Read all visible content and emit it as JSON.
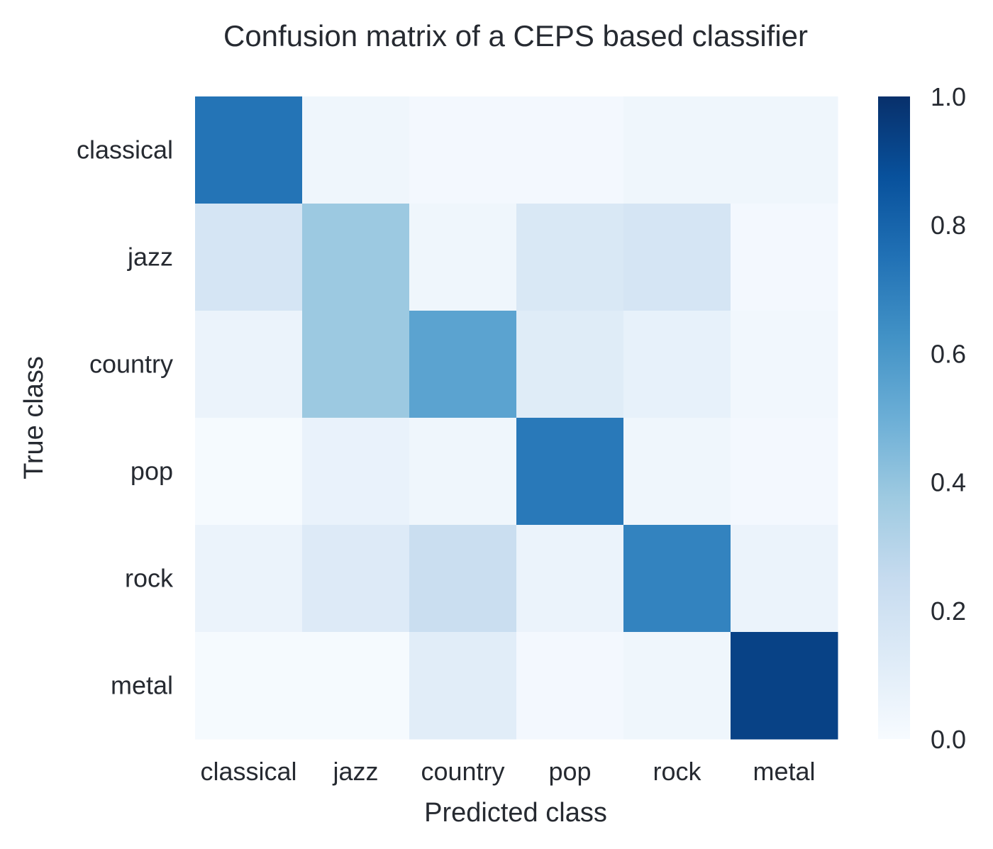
{
  "chart_data": {
    "type": "heatmap",
    "title": "Confusion matrix of a CEPS based classifier",
    "xlabel": "Predicted class",
    "ylabel": "True class",
    "x_categories": [
      "classical",
      "jazz",
      "country",
      "pop",
      "rock",
      "metal"
    ],
    "y_categories": [
      "classical",
      "jazz",
      "country",
      "pop",
      "rock",
      "metal"
    ],
    "values": [
      [
        0.74,
        0.04,
        0.02,
        0.02,
        0.04,
        0.04
      ],
      [
        0.17,
        0.38,
        0.04,
        0.15,
        0.17,
        0.02
      ],
      [
        0.06,
        0.38,
        0.55,
        0.12,
        0.08,
        0.03
      ],
      [
        0.01,
        0.07,
        0.04,
        0.72,
        0.04,
        0.02
      ],
      [
        0.06,
        0.13,
        0.23,
        0.06,
        0.68,
        0.06
      ],
      [
        0.01,
        0.01,
        0.11,
        0.02,
        0.04,
        0.93
      ]
    ],
    "colorbar": {
      "range": [
        0.0,
        1.0
      ],
      "ticks": [
        "0.0",
        "0.2",
        "0.4",
        "0.6",
        "0.8",
        "1.0"
      ],
      "colormap": "Blues"
    },
    "grid": false
  }
}
